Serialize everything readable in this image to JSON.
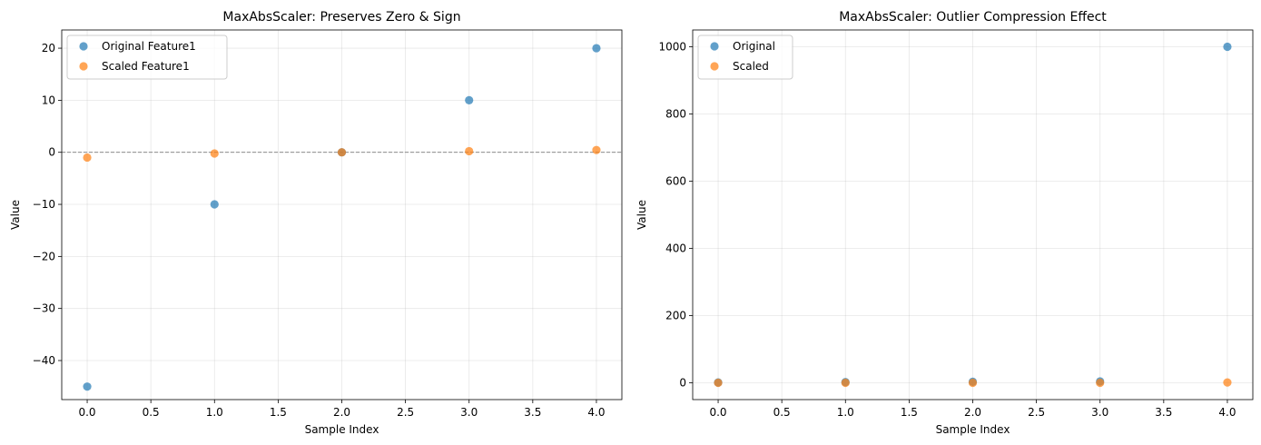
{
  "chart_data": [
    {
      "type": "scatter",
      "title": "MaxAbsScaler: Preserves Zero & Sign",
      "xlabel": "Sample Index",
      "ylabel": "Value",
      "xlim": [
        -0.2,
        4.2
      ],
      "ylim": [
        -47.5,
        23.5
      ],
      "x_ticks": [
        "0.0",
        "0.5",
        "1.0",
        "1.5",
        "2.0",
        "2.5",
        "3.0",
        "3.5",
        "4.0"
      ],
      "y_ticks": [
        "20",
        "10",
        "0",
        "−10",
        "−20",
        "−30",
        "−40"
      ],
      "grid": true,
      "reference_line": 0,
      "legend_position": "upper-left",
      "series": [
        {
          "name": "Original Feature1",
          "color": "#1f77b4",
          "x": [
            0,
            1,
            2,
            3,
            4
          ],
          "y": [
            -45,
            -10,
            0,
            10,
            20
          ]
        },
        {
          "name": "Scaled Feature1",
          "color": "#ff7f0e",
          "x": [
            0,
            1,
            2,
            3,
            4
          ],
          "y": [
            -1.0,
            -0.222,
            0.0,
            0.222,
            0.444
          ]
        }
      ]
    },
    {
      "type": "scatter",
      "title": "MaxAbsScaler: Outlier Compression Effect",
      "xlabel": "Sample Index",
      "ylabel": "Value",
      "xlim": [
        -0.2,
        4.2
      ],
      "ylim": [
        -50,
        1050
      ],
      "x_ticks": [
        "0.0",
        "0.5",
        "1.0",
        "1.5",
        "2.0",
        "2.5",
        "3.0",
        "3.5",
        "4.0"
      ],
      "y_ticks": [
        "1000",
        "800",
        "600",
        "400",
        "200",
        "0"
      ],
      "grid": true,
      "legend_position": "upper-left",
      "series": [
        {
          "name": "Original",
          "color": "#1f77b4",
          "x": [
            0,
            1,
            2,
            3,
            4
          ],
          "y": [
            1,
            2,
            3,
            4,
            1000
          ]
        },
        {
          "name": "Scaled",
          "color": "#ff7f0e",
          "x": [
            0,
            1,
            2,
            3,
            4
          ],
          "y": [
            0.001,
            0.002,
            0.003,
            0.004,
            1.0
          ]
        }
      ]
    }
  ]
}
